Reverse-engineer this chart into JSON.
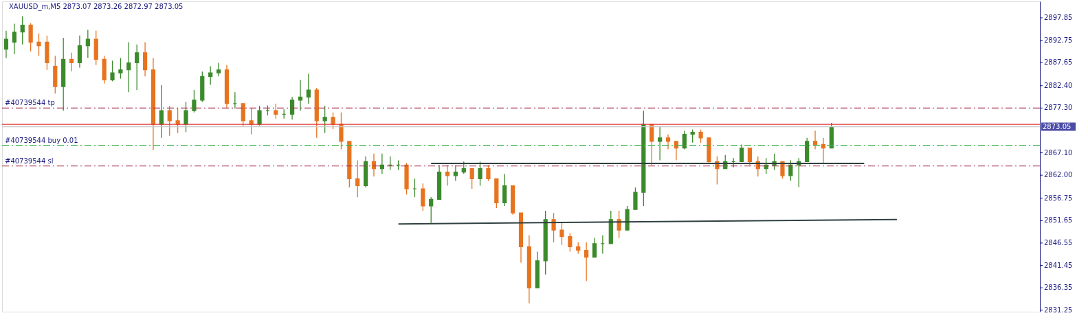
{
  "chart_data": {
    "type": "candlestick",
    "title": "XAUUSD_m,M5  2873.07 2873.26 2872.97 2873.05",
    "categories": [
      null,
      null,
      null,
      null,
      null,
      null,
      null,
      null,
      null,
      null,
      null,
      null,
      null,
      null,
      null,
      null,
      null,
      null,
      null,
      null,
      null,
      null,
      null,
      null,
      null,
      null,
      null,
      null,
      null,
      null,
      null,
      null,
      null,
      null,
      null,
      null,
      null,
      null,
      null,
      null,
      null,
      null,
      null,
      null,
      null,
      null,
      null,
      null,
      null,
      null,
      null,
      null,
      null,
      null,
      null,
      null,
      null,
      null,
      null,
      null,
      null,
      null,
      null,
      null,
      null,
      null,
      null,
      null,
      null,
      null,
      null,
      null,
      null,
      null,
      null,
      null,
      null,
      null,
      null,
      null,
      null,
      null,
      null,
      null,
      null,
      null,
      null,
      null,
      null,
      null,
      null,
      null,
      null,
      null,
      null,
      null,
      null,
      null,
      null,
      null,
      null,
      null,
      null,
      null,
      null,
      null,
      null,
      null,
      null,
      null,
      null,
      null,
      null,
      null,
      null,
      null,
      null,
      null,
      null,
      null,
      null,
      null,
      null,
      null,
      null,
      null,
      null
    ],
    "ohlc": [
      [
        2890.7,
        2894.9,
        2888.7,
        2893.0
      ],
      [
        2892.3,
        2896.5,
        2889.6,
        2894.6
      ],
      [
        2894.6,
        2898.2,
        2891.8,
        2896.2
      ],
      [
        2896.2,
        2896.6,
        2890.2,
        2892.3
      ],
      [
        2892.3,
        2894.3,
        2889.2,
        2891.5
      ],
      [
        2892.3,
        2893.8,
        2886.0,
        2887.6
      ],
      [
        2886.8,
        2889.2,
        2880.6,
        2882.2
      ],
      [
        2882.2,
        2893.3,
        2876.7,
        2888.4
      ],
      [
        2888.4,
        2889.9,
        2885.7,
        2887.6
      ],
      [
        2887.6,
        2893.8,
        2886.5,
        2891.5
      ],
      [
        2891.5,
        2895.1,
        2888.7,
        2893.0
      ],
      [
        2893.0,
        2894.9,
        2887.1,
        2888.4
      ],
      [
        2888.4,
        2889.2,
        2882.9,
        2883.7
      ],
      [
        2883.7,
        2888.1,
        2883.4,
        2885.3
      ],
      [
        2885.3,
        2888.7,
        2884.0,
        2886.0
      ],
      [
        2886.0,
        2892.3,
        2880.9,
        2887.6
      ],
      [
        2887.6,
        2891.8,
        2881.4,
        2889.9
      ],
      [
        2889.9,
        2892.3,
        2884.5,
        2886.0
      ],
      [
        2886.0,
        2888.7,
        2867.7,
        2873.6
      ],
      [
        2873.6,
        2882.5,
        2870.5,
        2876.7
      ],
      [
        2876.7,
        2877.8,
        2871.0,
        2874.4
      ],
      [
        2874.4,
        2877.2,
        2871.6,
        2873.6
      ],
      [
        2873.6,
        2878.7,
        2871.8,
        2876.7
      ],
      [
        2876.7,
        2881.4,
        2876.3,
        2879.1
      ],
      [
        2879.1,
        2885.6,
        2878.7,
        2884.5
      ],
      [
        2884.5,
        2886.8,
        2882.6,
        2885.3
      ],
      [
        2885.3,
        2887.6,
        2884.5,
        2886.0
      ],
      [
        2886.0,
        2887.1,
        2877.2,
        2878.3
      ],
      [
        2878.3,
        2880.9,
        2877.2,
        2878.3
      ],
      [
        2878.3,
        2878.3,
        2873.2,
        2874.4
      ],
      [
        2874.4,
        2877.2,
        2871.3,
        2873.6
      ],
      [
        2873.6,
        2877.8,
        2873.3,
        2876.7
      ],
      [
        2876.7,
        2877.9,
        2875.6,
        2876.7
      ],
      [
        2876.7,
        2878.3,
        2874.9,
        2875.9
      ],
      [
        2875.9,
        2877.0,
        2874.9,
        2875.9
      ],
      [
        2875.9,
        2879.8,
        2874.7,
        2879.1
      ],
      [
        2879.1,
        2883.7,
        2876.7,
        2879.8
      ],
      [
        2879.8,
        2885.1,
        2878.3,
        2881.4
      ],
      [
        2881.4,
        2881.9,
        2870.5,
        2874.4
      ],
      [
        2874.4,
        2877.8,
        2871.6,
        2875.2
      ],
      [
        2875.2,
        2876.3,
        2872.5,
        2873.6
      ],
      [
        2873.6,
        2876.3,
        2867.9,
        2869.7
      ],
      [
        2869.7,
        2869.7,
        2859.2,
        2861.2
      ],
      [
        2861.2,
        2865.4,
        2857.0,
        2859.6
      ],
      [
        2859.6,
        2866.3,
        2859.2,
        2865.1
      ],
      [
        2865.1,
        2866.9,
        2861.7,
        2863.5
      ],
      [
        2863.5,
        2866.9,
        2862.3,
        2864.3
      ],
      [
        2864.3,
        2866.3,
        2863.2,
        2864.3
      ],
      [
        2864.3,
        2865.4,
        2863.2,
        2864.3
      ],
      [
        2864.3,
        2864.8,
        2857.6,
        2858.9
      ],
      [
        2858.9,
        2861.2,
        2857.0,
        2858.9
      ],
      [
        2858.9,
        2860.1,
        2853.9,
        2855.0
      ],
      [
        2855.0,
        2857.0,
        2851.1,
        2856.5
      ],
      [
        2856.5,
        2864.3,
        2856.5,
        2862.7
      ],
      [
        2862.7,
        2864.3,
        2859.6,
        2861.9
      ],
      [
        2861.9,
        2864.3,
        2860.7,
        2862.7
      ],
      [
        2862.7,
        2865.1,
        2862.3,
        2863.5
      ],
      [
        2863.5,
        2863.5,
        2858.9,
        2861.2
      ],
      [
        2861.2,
        2865.1,
        2859.6,
        2863.5
      ],
      [
        2863.5,
        2864.3,
        2860.7,
        2861.2
      ],
      [
        2861.2,
        2861.2,
        2854.5,
        2855.7
      ],
      [
        2855.7,
        2862.3,
        2855.0,
        2859.6
      ],
      [
        2859.6,
        2859.6,
        2853.0,
        2853.4
      ],
      [
        2853.4,
        2853.4,
        2842.1,
        2845.7
      ],
      [
        2845.7,
        2848.3,
        2832.8,
        2836.3
      ],
      [
        2836.3,
        2844.6,
        2836.3,
        2842.5
      ],
      [
        2842.5,
        2853.9,
        2839.4,
        2851.9
      ],
      [
        2851.9,
        2853.4,
        2846.7,
        2849.5
      ],
      [
        2849.5,
        2851.4,
        2846.1,
        2848.0
      ],
      [
        2848.0,
        2848.8,
        2844.6,
        2845.7
      ],
      [
        2845.7,
        2846.7,
        2844.1,
        2844.9
      ],
      [
        2844.9,
        2846.7,
        2837.9,
        2843.3
      ],
      [
        2843.3,
        2847.7,
        2843.3,
        2846.4
      ],
      [
        2846.4,
        2848.3,
        2844.1,
        2846.4
      ],
      [
        2846.4,
        2853.9,
        2846.4,
        2851.9
      ],
      [
        2851.9,
        2853.9,
        2847.7,
        2849.5
      ],
      [
        2849.5,
        2855.0,
        2849.5,
        2854.2
      ],
      [
        2854.2,
        2859.2,
        2854.2,
        2858.1
      ],
      [
        2858.1,
        2876.7,
        2855.0,
        2873.6
      ],
      [
        2873.6,
        2873.6,
        2864.3,
        2869.7
      ],
      [
        2869.7,
        2873.2,
        2865.4,
        2870.5
      ],
      [
        2870.5,
        2871.3,
        2867.9,
        2869.7
      ],
      [
        2869.7,
        2869.7,
        2865.4,
        2868.2
      ],
      [
        2868.2,
        2872.1,
        2867.9,
        2871.3
      ],
      [
        2871.3,
        2872.4,
        2869.4,
        2871.8
      ],
      [
        2871.8,
        2872.4,
        2869.4,
        2870.5
      ],
      [
        2870.5,
        2870.5,
        2864.8,
        2865.1
      ],
      [
        2865.1,
        2866.3,
        2859.9,
        2863.5
      ],
      [
        2863.5,
        2866.6,
        2863.5,
        2865.1
      ],
      [
        2865.1,
        2865.9,
        2863.8,
        2865.1
      ],
      [
        2865.1,
        2869.0,
        2865.1,
        2868.2
      ],
      [
        2868.2,
        2868.2,
        2864.3,
        2865.1
      ],
      [
        2865.1,
        2866.3,
        2861.7,
        2863.5
      ],
      [
        2863.5,
        2865.9,
        2862.3,
        2864.3
      ],
      [
        2864.3,
        2866.9,
        2863.2,
        2865.1
      ],
      [
        2865.1,
        2865.1,
        2861.2,
        2861.9
      ],
      [
        2861.9,
        2865.4,
        2860.7,
        2864.3
      ],
      [
        2864.3,
        2865.9,
        2859.3,
        2865.1
      ],
      [
        2865.1,
        2870.5,
        2865.1,
        2869.7
      ],
      [
        2869.7,
        2872.1,
        2867.9,
        2869.0
      ],
      [
        2869.0,
        2870.5,
        2864.8,
        2868.2
      ],
      [
        2868.2,
        2873.9,
        2868.2,
        2873.05
      ],
      null,
      null,
      null,
      null,
      null,
      null,
      null,
      null,
      null,
      null,
      null,
      null,
      null,
      null,
      null,
      null,
      null,
      null,
      null,
      null,
      null,
      null,
      null,
      null,
      null
    ],
    "colors": [
      "#3b8a2b",
      "#3b8a2b",
      "#3b8a2b",
      "#e8731f",
      "#e8731f",
      "#e8731f",
      "#e8731f",
      "#3b8a2b",
      "#e8731f",
      "#3b8a2b",
      "#3b8a2b",
      "#e8731f",
      "#e8731f",
      "#3b8a2b",
      "#3b8a2b",
      "#3b8a2b",
      "#3b8a2b",
      "#e8731f",
      "#e8731f",
      "#3b8a2b",
      "#e8731f",
      "#e8731f",
      "#3b8a2b",
      "#3b8a2b",
      "#3b8a2b",
      "#3b8a2b",
      "#3b8a2b",
      "#e8731f",
      "#3b8a2b",
      "#e8731f",
      "#e8731f",
      "#3b8a2b",
      "#3b8a2b",
      "#e8731f",
      "#3b8a2b",
      "#3b8a2b",
      "#3b8a2b",
      "#3b8a2b",
      "#e8731f",
      "#3b8a2b",
      "#e8731f",
      "#e8731f",
      "#e8731f",
      "#e8731f",
      "#3b8a2b",
      "#e8731f",
      "#3b8a2b",
      "#3b8a2b",
      "#3b8a2b",
      "#e8731f",
      "#3b8a2b",
      "#e8731f",
      "#3b8a2b",
      "#3b8a2b",
      "#e8731f",
      "#3b8a2b",
      "#3b8a2b",
      "#e8731f",
      "#3b8a2b",
      "#e8731f",
      "#e8731f",
      "#3b8a2b",
      "#e8731f",
      "#e8731f",
      "#e8731f",
      "#3b8a2b",
      "#3b8a2b",
      "#e8731f",
      "#e8731f",
      "#e8731f",
      "#e8731f",
      "#e8731f",
      "#3b8a2b",
      "#3b8a2b",
      "#3b8a2b",
      "#e8731f",
      "#3b8a2b",
      "#3b8a2b",
      "#3b8a2b",
      "#e8731f",
      "#3b8a2b",
      "#e8731f",
      "#e8731f",
      "#3b8a2b",
      "#3b8a2b",
      "#e8731f",
      "#e8731f",
      "#e8731f",
      "#3b8a2b",
      "#3b8a2b",
      "#3b8a2b",
      "#e8731f",
      "#e8731f",
      "#3b8a2b",
      "#3b8a2b",
      "#e8731f",
      "#3b8a2b",
      "#3b8a2b",
      "#3b8a2b",
      "#e8731f",
      "#e8731f",
      "#3b8a2b",
      null,
      null,
      null,
      null,
      null,
      null,
      null,
      null,
      null,
      null,
      null,
      null,
      null,
      null,
      null,
      null,
      null,
      null,
      null,
      null,
      null,
      null,
      null,
      null,
      null
    ],
    "series": [
      {
        "type": "line",
        "color": "#2f4040",
        "values": [
          null,
          null,
          null,
          null,
          null,
          null,
          null,
          null,
          null,
          null,
          null,
          null,
          null,
          null,
          null,
          null,
          null,
          null,
          null,
          null,
          null,
          null,
          null,
          null,
          null,
          null,
          null,
          null,
          null,
          null,
          null,
          null,
          null,
          null,
          null,
          null,
          null,
          null,
          null,
          null,
          null,
          null,
          null,
          null,
          null,
          null,
          null,
          null,
          null,
          null,
          null,
          null,
          2864.7,
          null,
          null,
          null,
          null,
          null,
          null,
          null,
          null,
          null,
          null,
          null,
          null,
          null,
          null,
          null,
          null,
          null,
          null,
          null,
          null,
          null,
          null,
          null,
          null,
          null,
          null,
          null,
          null,
          null,
          null,
          null,
          null,
          null,
          null,
          null,
          null,
          null,
          null,
          null,
          null,
          null,
          null,
          null,
          null,
          null,
          null,
          null,
          null,
          null,
          null,
          null,
          null,
          2864.7,
          null,
          null,
          null,
          null,
          null,
          null,
          null,
          null,
          null,
          null,
          null,
          null,
          null,
          null,
          null,
          null,
          null,
          null,
          null,
          null,
          null
        ]
      },
      {
        "type": "line",
        "color": "#2f4040",
        "values": [
          null,
          null,
          null,
          null,
          null,
          null,
          null,
          null,
          null,
          null,
          null,
          null,
          null,
          null,
          null,
          null,
          null,
          null,
          null,
          null,
          null,
          null,
          null,
          null,
          null,
          null,
          null,
          null,
          null,
          null,
          null,
          null,
          null,
          null,
          null,
          null,
          null,
          null,
          null,
          null,
          null,
          null,
          null,
          null,
          null,
          null,
          null,
          null,
          2850.9,
          null,
          null,
          null,
          null,
          null,
          null,
          null,
          null,
          null,
          null,
          null,
          null,
          null,
          null,
          null,
          null,
          null,
          null,
          null,
          null,
          null,
          null,
          null,
          null,
          null,
          null,
          null,
          null,
          null,
          null,
          null,
          null,
          null,
          null,
          null,
          null,
          null,
          null,
          null,
          null,
          null,
          null,
          null,
          null,
          null,
          null,
          null,
          null,
          null,
          null,
          null,
          null,
          null,
          null,
          null,
          null,
          null,
          null,
          null,
          null,
          2851.9,
          null,
          null,
          null,
          null,
          null,
          null,
          null,
          null,
          null,
          null,
          null,
          null,
          null,
          null,
          null,
          null,
          null
        ]
      }
    ],
    "ylim": [
      2830.9,
      2901.6
    ],
    "yticks": [
      2831.25,
      2836.35,
      2841.45,
      2846.55,
      2851.65,
      2856.75,
      {
        "value": 2862.0,
        "label": "2862.00"
      },
      {
        "value": 2867.1,
        "label": "2867.10"
      },
      {
        "value": 2877.3,
        "label": "2877.30"
      },
      {
        "value": 2882.4,
        "label": "2882.40"
      },
      2887.65,
      2892.75,
      2897.85
    ],
    "tick_labels": "y",
    "grid": false,
    "ref_lines": [
      {
        "axis": "y",
        "value": 2877.3,
        "label": "#40739544 tp",
        "color": "#a8304f",
        "line_style": "dashed"
      },
      {
        "axis": "y",
        "value": 2868.8,
        "label": "#40739544 buy 0.01",
        "color": "#3cb34a",
        "line_style": "dashed"
      },
      {
        "axis": "y",
        "value": 2864.1,
        "label": "#40739544 sl",
        "color": "#a8304f",
        "line_style": "dashed"
      },
      {
        "axis": "y",
        "value": 2873.57,
        "label": null,
        "color": "#e03030",
        "line_style": "solid"
      },
      {
        "axis": "y",
        "value": 2873.05,
        "label": "2873.05",
        "color": "#c8c8c8",
        "line_style": "solid"
      }
    ]
  }
}
